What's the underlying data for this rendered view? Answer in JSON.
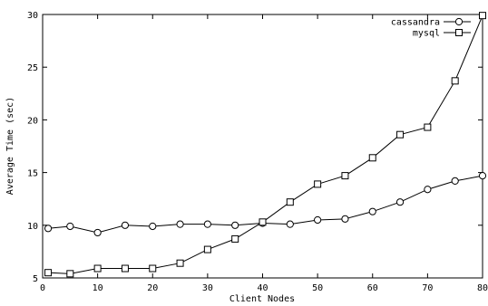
{
  "chart_data": {
    "type": "line",
    "title": "",
    "xlabel": "Client Nodes",
    "ylabel": "Average Time (sec)",
    "xlim": [
      0,
      80
    ],
    "ylim": [
      5,
      30
    ],
    "xticks": [
      0,
      10,
      20,
      30,
      40,
      50,
      60,
      70,
      80
    ],
    "yticks": [
      5,
      10,
      15,
      20,
      25,
      30
    ],
    "grid": false,
    "legend_position": "top-right",
    "x": [
      1,
      5,
      10,
      15,
      20,
      25,
      30,
      35,
      40,
      45,
      50,
      55,
      60,
      65,
      70,
      75,
      80
    ],
    "series": [
      {
        "name": "cassandra",
        "marker": "circle",
        "values": [
          9.7,
          9.9,
          9.3,
          10.0,
          9.9,
          10.1,
          10.1,
          10.0,
          10.2,
          10.1,
          10.5,
          10.6,
          11.3,
          12.2,
          13.4,
          14.2,
          14.7
        ]
      },
      {
        "name": "mysql",
        "marker": "square",
        "values": [
          5.5,
          5.4,
          5.9,
          5.9,
          5.9,
          6.4,
          7.7,
          8.7,
          10.3,
          12.2,
          13.9,
          14.7,
          16.4,
          18.6,
          19.3,
          23.7,
          29.9
        ]
      }
    ]
  }
}
